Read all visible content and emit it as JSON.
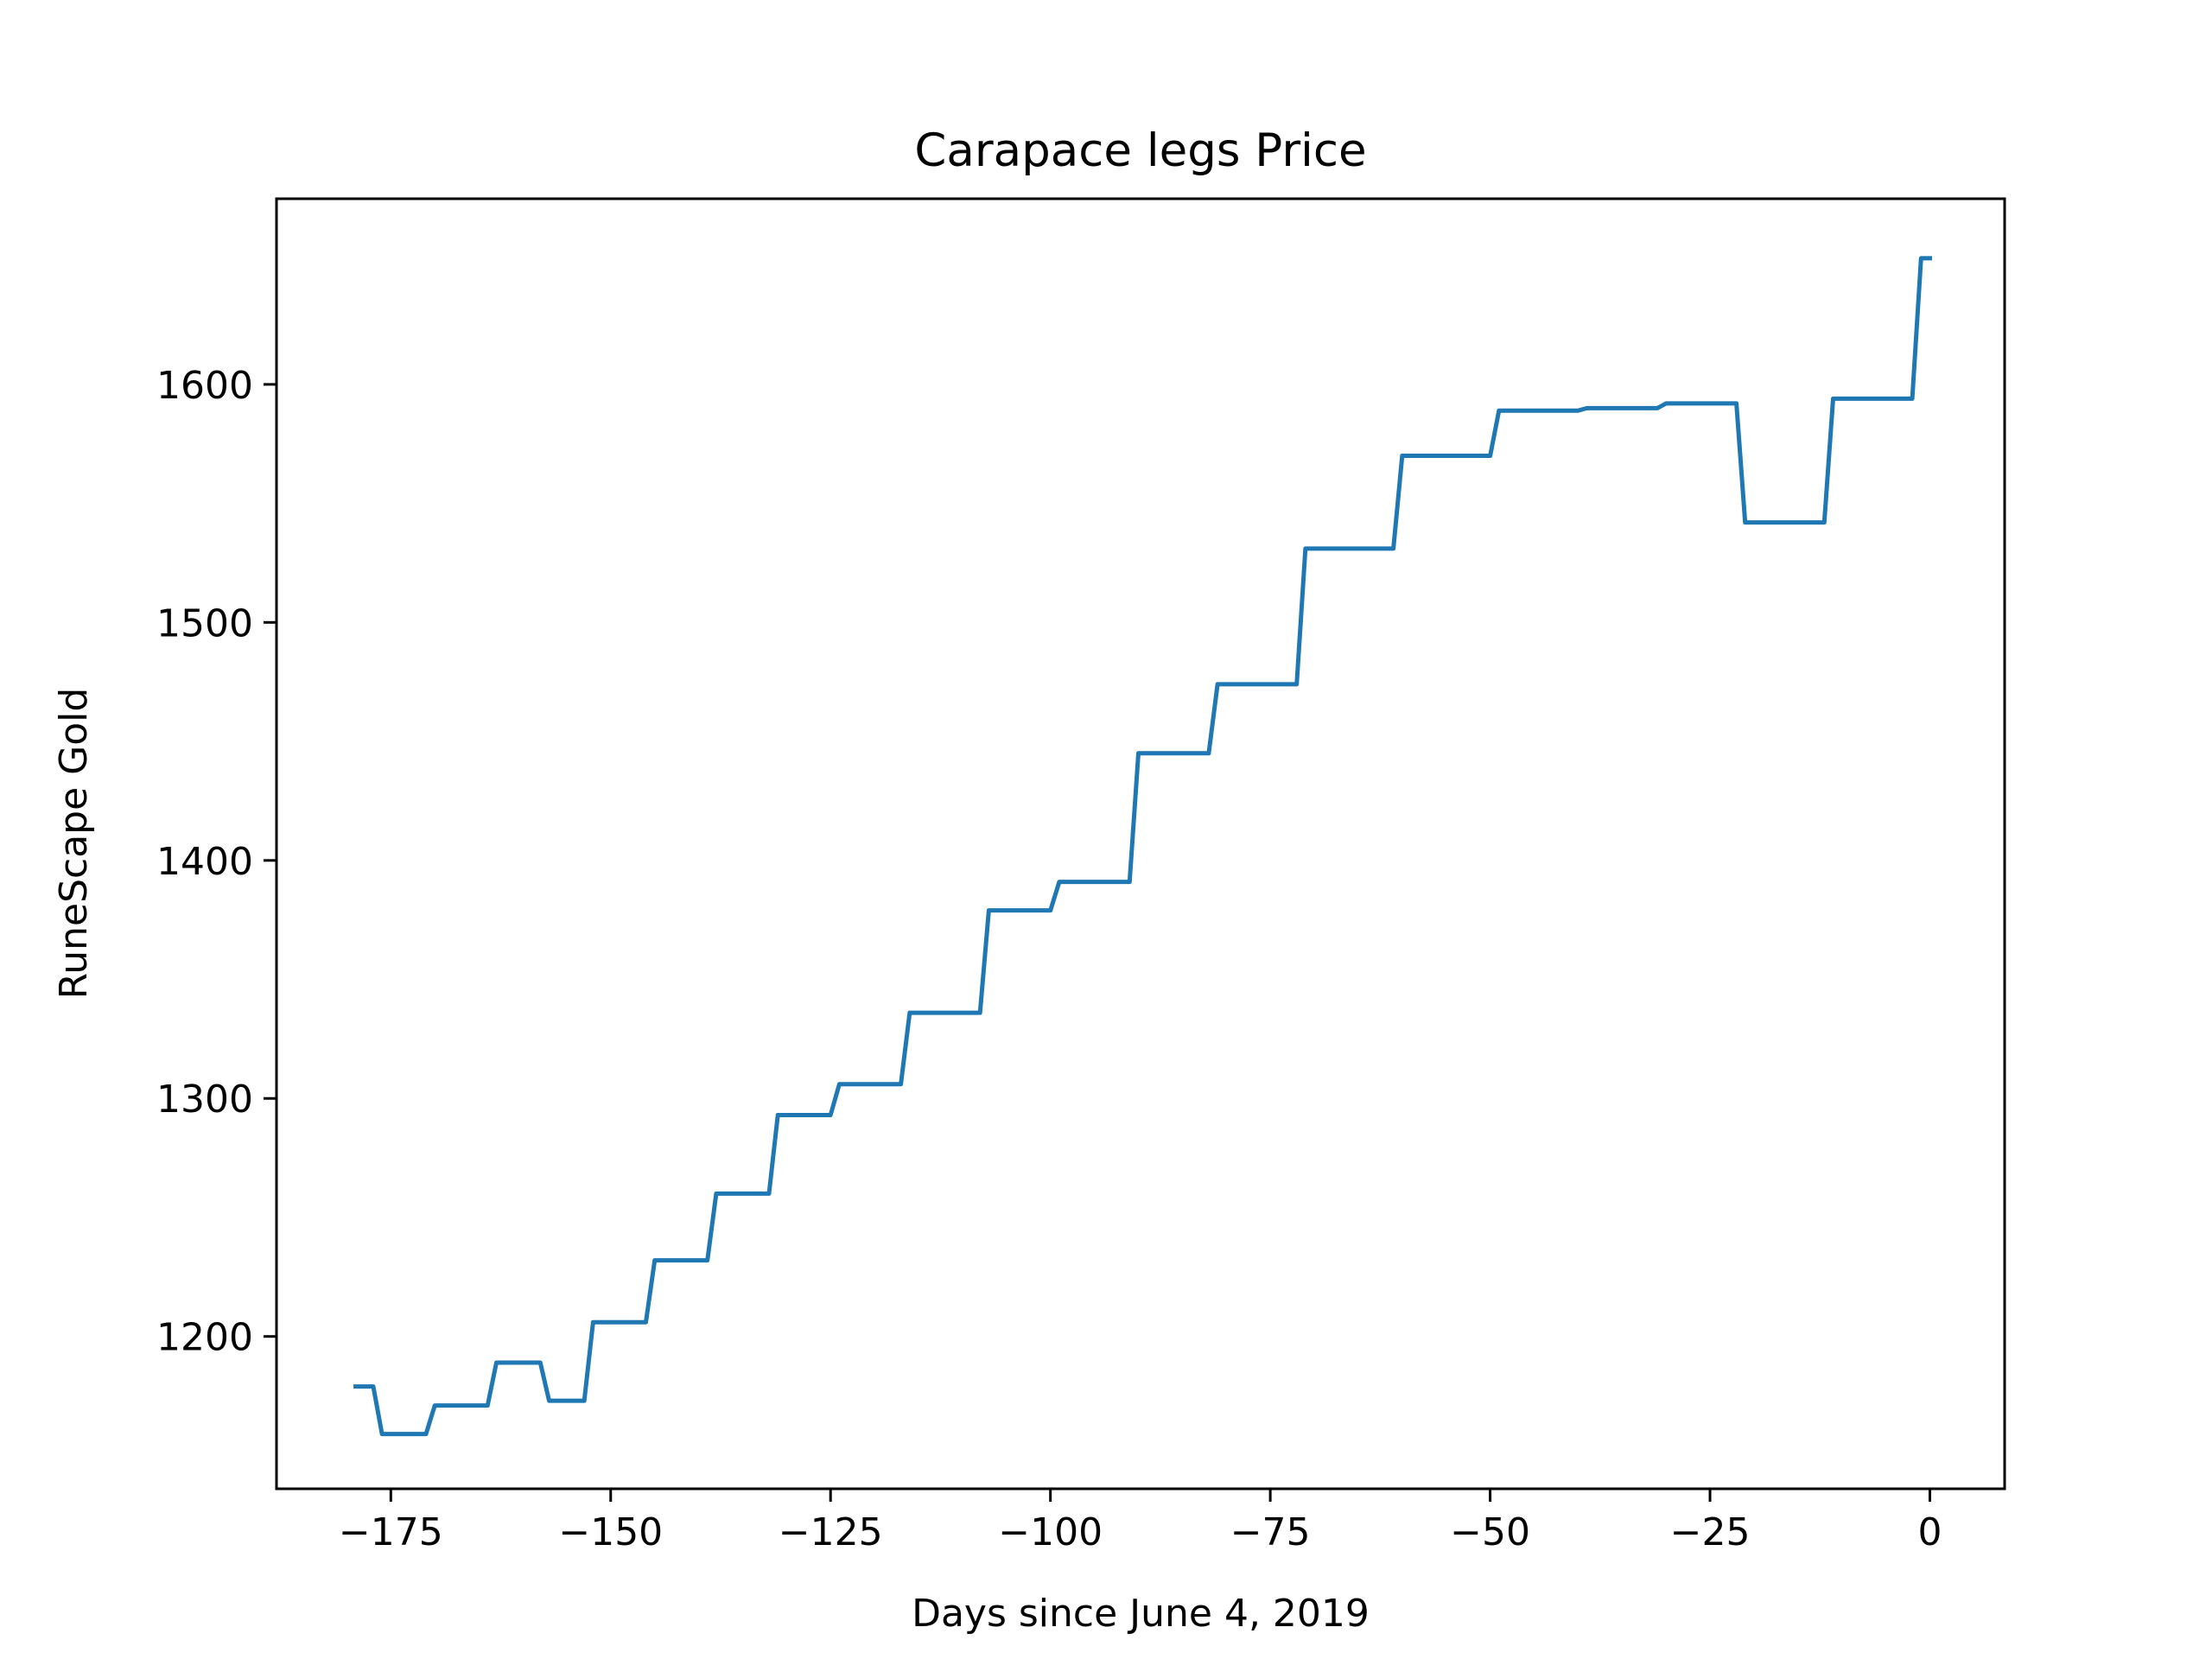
{
  "chart_data": {
    "type": "line",
    "title": "Carapace legs Price",
    "xlabel": "Days since June 4, 2019",
    "ylabel": "RuneScape Gold",
    "xlim": [
      -188,
      8.5
    ],
    "ylim": [
      1136,
      1678
    ],
    "xticks": [
      -175,
      -150,
      -125,
      -100,
      -75,
      -50,
      -25,
      0
    ],
    "xtick_labels": [
      "−175",
      "−150",
      "−125",
      "−100",
      "−75",
      "−50",
      "−25",
      "0"
    ],
    "yticks": [
      1200,
      1300,
      1400,
      1500,
      1600
    ],
    "ytick_labels": [
      "1200",
      "1300",
      "1400",
      "1500",
      "1600"
    ],
    "grid": false,
    "legend": "none",
    "line_color": "#1f77b4",
    "series": [
      {
        "x": [
          -179,
          -177,
          -176,
          -171,
          -170,
          -164,
          -163,
          -158,
          -157,
          -153,
          -152,
          -146,
          -145,
          -139,
          -138,
          -132,
          -131,
          -125,
          -124,
          -117,
          -116,
          -108,
          -107,
          -100,
          -99,
          -91,
          -90,
          -82,
          -81,
          -72,
          -71,
          -61,
          -60,
          -50,
          -49,
          -40,
          -39,
          -31,
          -30,
          -22,
          -21,
          -12,
          -11,
          -2,
          -1,
          0
        ],
        "y": [
          1179,
          1179,
          1159,
          1159,
          1171,
          1171,
          1189,
          1189,
          1173,
          1173,
          1206,
          1206,
          1232,
          1232,
          1260,
          1260,
          1293,
          1293,
          1306,
          1306,
          1336,
          1336,
          1379,
          1379,
          1391,
          1391,
          1445,
          1445,
          1474,
          1474,
          1531,
          1531,
          1570,
          1570,
          1589,
          1589,
          1590,
          1590,
          1592,
          1592,
          1542,
          1542,
          1594,
          1594,
          1653,
          1653
        ]
      }
    ]
  }
}
